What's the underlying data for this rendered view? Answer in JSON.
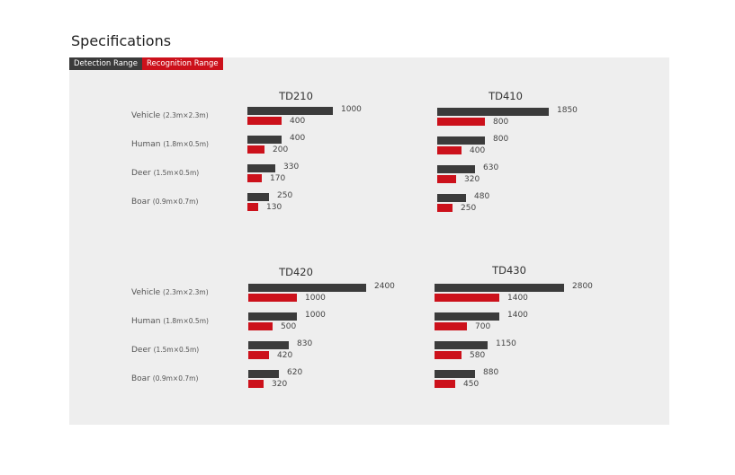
{
  "page": {
    "title": "Specifications"
  },
  "legend": {
    "detection": "Detection Range",
    "recognition": "Recognition Range"
  },
  "colors": {
    "detection": "#3b3b3b",
    "recognition": "#cc111b",
    "panel": "#eeeeee"
  },
  "chart_data": [
    {
      "type": "bar",
      "orientation": "horizontal",
      "title": "TD210",
      "categories": [
        {
          "name": "Vehicle",
          "dim": "(2.3m×2.3m)"
        },
        {
          "name": "Human",
          "dim": "(1.8m×0.5m)"
        },
        {
          "name": "Deer",
          "dim": "(1.5m×0.5m)"
        },
        {
          "name": "Boar",
          "dim": "(0.9m×0.7m)"
        }
      ],
      "series": [
        {
          "name": "Detection Range",
          "values": [
            1000,
            400,
            330,
            250
          ]
        },
        {
          "name": "Recognition Range",
          "values": [
            400,
            200,
            170,
            130
          ]
        }
      ]
    },
    {
      "type": "bar",
      "orientation": "horizontal",
      "title": "TD410",
      "categories": [
        {
          "name": "Vehicle",
          "dim": "(2.3m×2.3m)"
        },
        {
          "name": "Human",
          "dim": "(1.8m×0.5m)"
        },
        {
          "name": "Deer",
          "dim": "(1.5m×0.5m)"
        },
        {
          "name": "Boar",
          "dim": "(0.9m×0.7m)"
        }
      ],
      "series": [
        {
          "name": "Detection Range",
          "values": [
            1850,
            800,
            630,
            480
          ]
        },
        {
          "name": "Recognition Range",
          "values": [
            800,
            400,
            320,
            250
          ]
        }
      ]
    },
    {
      "type": "bar",
      "orientation": "horizontal",
      "title": "TD420",
      "categories": [
        {
          "name": "Vehicle",
          "dim": "(2.3m×2.3m)"
        },
        {
          "name": "Human",
          "dim": "(1.8m×0.5m)"
        },
        {
          "name": "Deer",
          "dim": "(1.5m×0.5m)"
        },
        {
          "name": "Boar",
          "dim": "(0.9m×0.7m)"
        }
      ],
      "series": [
        {
          "name": "Detection Range",
          "values": [
            2400,
            1000,
            830,
            620
          ]
        },
        {
          "name": "Recognition Range",
          "values": [
            1000,
            500,
            420,
            320
          ]
        }
      ]
    },
    {
      "type": "bar",
      "orientation": "horizontal",
      "title": "TD430",
      "categories": [
        {
          "name": "Vehicle",
          "dim": "(2.3m×2.3m)"
        },
        {
          "name": "Human",
          "dim": "(1.8m×0.5m)"
        },
        {
          "name": "Deer",
          "dim": "(1.5m×0.5m)"
        },
        {
          "name": "Boar",
          "dim": "(0.9m×0.7m)"
        }
      ],
      "series": [
        {
          "name": "Detection Range",
          "values": [
            2800,
            1400,
            1150,
            880
          ]
        },
        {
          "name": "Recognition Range",
          "values": [
            1400,
            700,
            580,
            450
          ]
        }
      ]
    }
  ]
}
